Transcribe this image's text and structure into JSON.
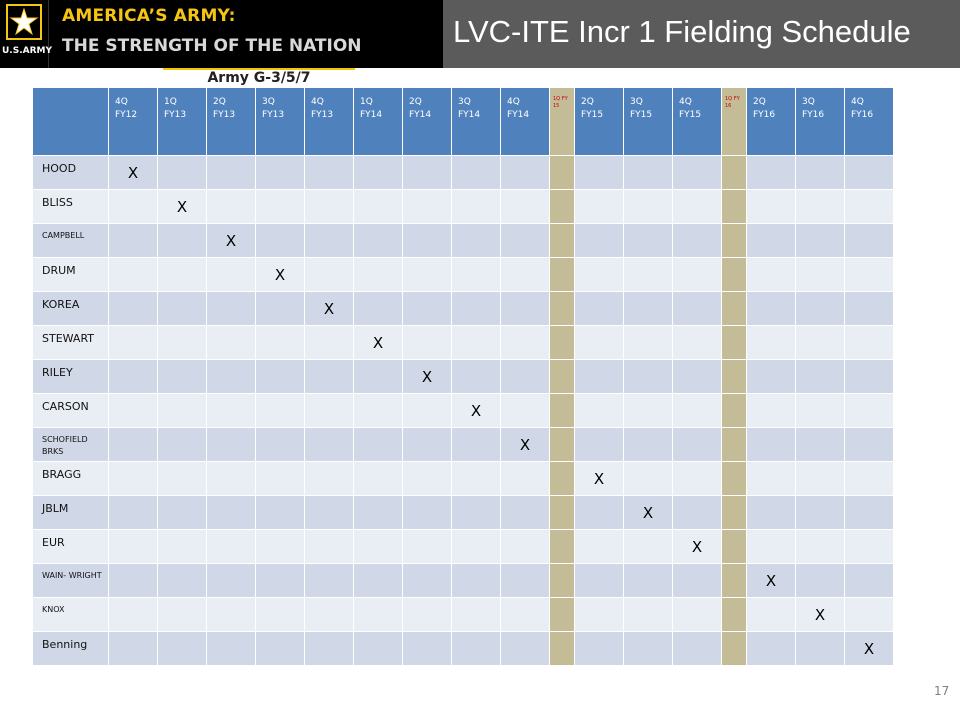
{
  "header": {
    "logo_text": "U.S.ARMY",
    "tagline_1": "AMERICA’S ARMY:",
    "tagline_2": "THE STRENGTH OF THE NATION",
    "title": "LVC-ITE Incr 1 Fielding Schedule",
    "org": "Army G-3/5/7"
  },
  "colors": {
    "header_blue": "#4f81bd",
    "separator": "#c4bc96",
    "row_dark": "#d0d8e8",
    "row_light": "#e9edf4",
    "tagline_gold": "#f6c512"
  },
  "table": {
    "columns": [
      {
        "l1": "4Q",
        "l2": "FY12",
        "sep": false
      },
      {
        "l1": "1Q",
        "l2": "FY13",
        "sep": false
      },
      {
        "l1": "2Q",
        "l2": "FY13",
        "sep": false
      },
      {
        "l1": "3Q",
        "l2": "FY13",
        "sep": false
      },
      {
        "l1": "4Q",
        "l2": "FY13",
        "sep": false
      },
      {
        "l1": "1Q",
        "l2": "FY14",
        "sep": false
      },
      {
        "l1": "2Q",
        "l2": "FY14",
        "sep": false
      },
      {
        "l1": "3Q",
        "l2": "FY14",
        "sep": false
      },
      {
        "l1": "4Q",
        "l2": "FY14",
        "sep": false
      },
      {
        "l1": "1Q FY",
        "l2": "15",
        "sep": true
      },
      {
        "l1": "2Q",
        "l2": "FY15",
        "sep": false
      },
      {
        "l1": "3Q",
        "l2": "FY15",
        "sep": false
      },
      {
        "l1": "4Q",
        "l2": "FY15",
        "sep": false
      },
      {
        "l1": "1Q FY",
        "l2": "16",
        "sep": true
      },
      {
        "l1": "2Q",
        "l2": "FY16",
        "sep": false
      },
      {
        "l1": "3Q",
        "l2": "FY16",
        "sep": false
      },
      {
        "l1": "4Q",
        "l2": "FY16",
        "sep": false
      }
    ],
    "mark": "X",
    "rows": [
      {
        "site": "HOOD",
        "col": 0,
        "small": false
      },
      {
        "site": "BLISS",
        "col": 1,
        "small": false
      },
      {
        "site": "CAMPBELL",
        "col": 2,
        "small": true
      },
      {
        "site": "DRUM",
        "col": 3,
        "small": false
      },
      {
        "site": "KOREA",
        "col": 4,
        "small": false
      },
      {
        "site": "STEWART",
        "col": 5,
        "small": false
      },
      {
        "site": "RILEY",
        "col": 6,
        "small": false
      },
      {
        "site": "CARSON",
        "col": 7,
        "small": false
      },
      {
        "site": "SCHOFIELD BRKS",
        "col": 8,
        "small": true
      },
      {
        "site": "BRAGG",
        "col": 10,
        "small": false
      },
      {
        "site": "JBLM",
        "col": 11,
        "small": false
      },
      {
        "site": "EUR",
        "col": 12,
        "small": false
      },
      {
        "site": "WAIN- WRIGHT",
        "col": 14,
        "small": true
      },
      {
        "site": "KNOX",
        "col": 15,
        "small": true
      },
      {
        "site": "Benning",
        "col": 16,
        "small": false
      }
    ]
  },
  "page_number": "17"
}
